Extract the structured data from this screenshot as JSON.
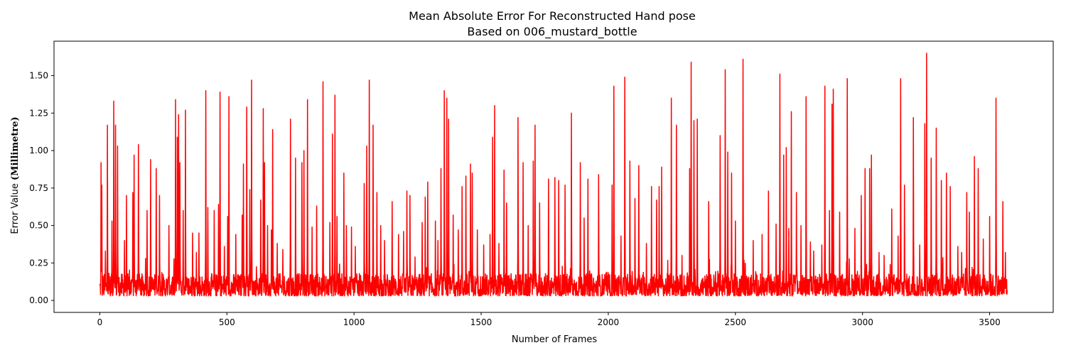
{
  "chart_data": {
    "type": "line",
    "title": "Mean Absolute Error For Reconstructed Hand pose",
    "subtitle": "Based on 006_mustard_bottle",
    "xlabel": "Number of Frames",
    "ylabel_prefix": "Error Value ",
    "ylabel_unit": "(Millimetre)",
    "xlim": [
      -180,
      3750
    ],
    "ylim": [
      -0.08,
      1.73
    ],
    "x_ticks": [
      0,
      500,
      1000,
      1500,
      2000,
      2500,
      3000,
      3500
    ],
    "x_tick_labels": [
      "0",
      "500",
      "1000",
      "1500",
      "2000",
      "2500",
      "3000",
      "3500"
    ],
    "y_ticks": [
      0.0,
      0.25,
      0.5,
      0.75,
      1.0,
      1.25,
      1.5
    ],
    "y_tick_labels": [
      "0.00",
      "0.25",
      "0.50",
      "0.75",
      "1.00",
      "1.25",
      "1.50"
    ],
    "grid": false,
    "legend": "none",
    "n_frames": 3570,
    "series_color": "#ff0000",
    "baseline_low": 0.03,
    "baseline_high": 0.18,
    "peaks": [
      [
        5,
        0.92
      ],
      [
        8,
        0.77
      ],
      [
        22,
        0.33
      ],
      [
        30,
        1.17
      ],
      [
        48,
        0.53
      ],
      [
        55,
        1.33
      ],
      [
        62,
        1.17
      ],
      [
        70,
        1.03
      ],
      [
        97,
        0.4
      ],
      [
        105,
        0.7
      ],
      [
        130,
        0.72
      ],
      [
        135,
        0.97
      ],
      [
        152,
        1.04
      ],
      [
        180,
        0.28
      ],
      [
        186,
        0.6
      ],
      [
        200,
        0.94
      ],
      [
        222,
        0.88
      ],
      [
        235,
        0.7
      ],
      [
        272,
        0.5
      ],
      [
        298,
        1.34
      ],
      [
        305,
        1.09
      ],
      [
        310,
        1.24
      ],
      [
        315,
        0.92
      ],
      [
        328,
        0.6
      ],
      [
        337,
        1.27
      ],
      [
        365,
        0.45
      ],
      [
        380,
        0.32
      ],
      [
        390,
        0.45
      ],
      [
        417,
        1.4
      ],
      [
        425,
        0.62
      ],
      [
        450,
        0.6
      ],
      [
        467,
        0.64
      ],
      [
        473,
        1.39
      ],
      [
        490,
        0.36
      ],
      [
        503,
        0.56
      ],
      [
        508,
        1.36
      ],
      [
        535,
        0.44
      ],
      [
        560,
        0.57
      ],
      [
        565,
        0.91
      ],
      [
        578,
        1.29
      ],
      [
        590,
        0.74
      ],
      [
        597,
        1.47
      ],
      [
        633,
        0.67
      ],
      [
        643,
        1.28
      ],
      [
        648,
        0.92
      ],
      [
        660,
        0.5
      ],
      [
        675,
        0.47
      ],
      [
        680,
        1.14
      ],
      [
        698,
        0.38
      ],
      [
        720,
        0.34
      ],
      [
        750,
        1.21
      ],
      [
        770,
        0.95
      ],
      [
        795,
        0.92
      ],
      [
        803,
        1.0
      ],
      [
        817,
        1.34
      ],
      [
        835,
        0.49
      ],
      [
        853,
        0.63
      ],
      [
        878,
        1.46
      ],
      [
        905,
        0.52
      ],
      [
        915,
        1.11
      ],
      [
        925,
        1.37
      ],
      [
        933,
        0.56
      ],
      [
        960,
        0.85
      ],
      [
        970,
        0.5
      ],
      [
        990,
        0.49
      ],
      [
        1005,
        0.36
      ],
      [
        1040,
        0.78
      ],
      [
        1050,
        1.03
      ],
      [
        1060,
        1.47
      ],
      [
        1075,
        1.17
      ],
      [
        1090,
        0.72
      ],
      [
        1105,
        0.5
      ],
      [
        1120,
        0.4
      ],
      [
        1150,
        0.66
      ],
      [
        1175,
        0.44
      ],
      [
        1195,
        0.46
      ],
      [
        1208,
        0.73
      ],
      [
        1220,
        0.7
      ],
      [
        1240,
        0.29
      ],
      [
        1268,
        0.52
      ],
      [
        1280,
        0.69
      ],
      [
        1290,
        0.79
      ],
      [
        1320,
        0.53
      ],
      [
        1330,
        0.4
      ],
      [
        1342,
        0.88
      ],
      [
        1355,
        1.4
      ],
      [
        1365,
        1.35
      ],
      [
        1372,
        1.21
      ],
      [
        1390,
        0.57
      ],
      [
        1410,
        0.47
      ],
      [
        1425,
        0.76
      ],
      [
        1440,
        0.83
      ],
      [
        1458,
        0.91
      ],
      [
        1465,
        0.85
      ],
      [
        1485,
        0.47
      ],
      [
        1510,
        0.37
      ],
      [
        1535,
        0.44
      ],
      [
        1545,
        1.09
      ],
      [
        1553,
        1.3
      ],
      [
        1570,
        0.38
      ],
      [
        1590,
        0.87
      ],
      [
        1600,
        0.65
      ],
      [
        1645,
        1.22
      ],
      [
        1665,
        0.92
      ],
      [
        1685,
        0.5
      ],
      [
        1705,
        0.93
      ],
      [
        1712,
        1.17
      ],
      [
        1730,
        0.65
      ],
      [
        1765,
        0.81
      ],
      [
        1790,
        0.82
      ],
      [
        1805,
        0.8
      ],
      [
        1830,
        0.77
      ],
      [
        1855,
        1.25
      ],
      [
        1890,
        0.92
      ],
      [
        1905,
        0.55
      ],
      [
        1920,
        0.81
      ],
      [
        1962,
        0.84
      ],
      [
        2015,
        0.77
      ],
      [
        2022,
        1.43
      ],
      [
        2050,
        0.43
      ],
      [
        2065,
        1.49
      ],
      [
        2085,
        0.93
      ],
      [
        2105,
        0.68
      ],
      [
        2120,
        0.9
      ],
      [
        2150,
        0.38
      ],
      [
        2170,
        0.76
      ],
      [
        2190,
        0.67
      ],
      [
        2200,
        0.76
      ],
      [
        2210,
        0.89
      ],
      [
        2248,
        1.35
      ],
      [
        2268,
        1.17
      ],
      [
        2290,
        0.3
      ],
      [
        2320,
        0.88
      ],
      [
        2326,
        1.59
      ],
      [
        2337,
        1.2
      ],
      [
        2350,
        1.21
      ],
      [
        2395,
        0.66
      ],
      [
        2440,
        1.1
      ],
      [
        2460,
        1.54
      ],
      [
        2470,
        0.99
      ],
      [
        2485,
        0.85
      ],
      [
        2500,
        0.53
      ],
      [
        2530,
        1.61
      ],
      [
        2570,
        0.4
      ],
      [
        2605,
        0.44
      ],
      [
        2630,
        0.73
      ],
      [
        2660,
        0.51
      ],
      [
        2675,
        1.51
      ],
      [
        2690,
        0.97
      ],
      [
        2700,
        1.02
      ],
      [
        2710,
        0.48
      ],
      [
        2720,
        1.26
      ],
      [
        2740,
        0.72
      ],
      [
        2758,
        0.5
      ],
      [
        2778,
        1.36
      ],
      [
        2795,
        0.39
      ],
      [
        2808,
        0.33
      ],
      [
        2840,
        0.37
      ],
      [
        2852,
        1.43
      ],
      [
        2870,
        0.6
      ],
      [
        2880,
        1.31
      ],
      [
        2885,
        1.41
      ],
      [
        2910,
        0.59
      ],
      [
        2940,
        1.48
      ],
      [
        2970,
        0.48
      ],
      [
        2995,
        0.7
      ],
      [
        3010,
        0.88
      ],
      [
        3028,
        0.88
      ],
      [
        3035,
        0.97
      ],
      [
        3065,
        0.32
      ],
      [
        3085,
        0.3
      ],
      [
        3115,
        0.61
      ],
      [
        3140,
        0.43
      ],
      [
        3150,
        1.48
      ],
      [
        3165,
        0.77
      ],
      [
        3200,
        1.22
      ],
      [
        3225,
        0.37
      ],
      [
        3245,
        1.18
      ],
      [
        3252,
        1.65
      ],
      [
        3270,
        0.95
      ],
      [
        3290,
        1.15
      ],
      [
        3310,
        0.8
      ],
      [
        3330,
        0.85
      ],
      [
        3345,
        0.76
      ],
      [
        3375,
        0.36
      ],
      [
        3390,
        0.32
      ],
      [
        3410,
        0.72
      ],
      [
        3420,
        0.59
      ],
      [
        3440,
        0.96
      ],
      [
        3455,
        0.88
      ],
      [
        3475,
        0.41
      ],
      [
        3500,
        0.56
      ],
      [
        3525,
        1.35
      ],
      [
        3552,
        0.66
      ],
      [
        3562,
        0.32
      ]
    ]
  }
}
